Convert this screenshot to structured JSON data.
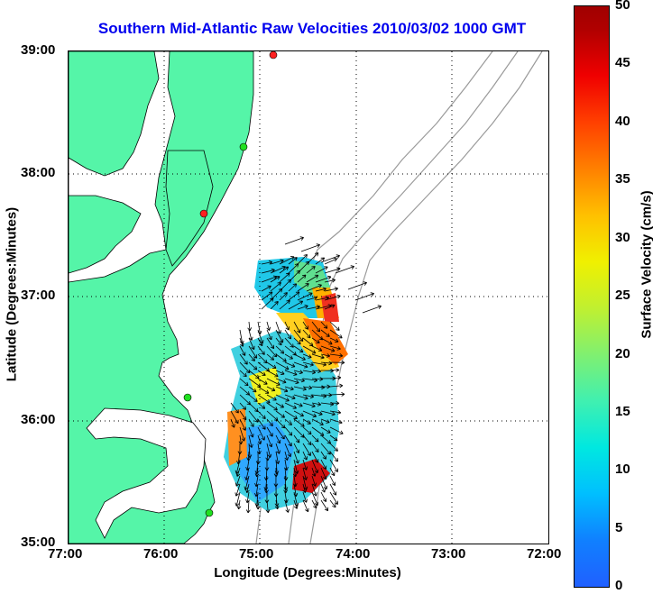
{
  "title": "Southern Mid-Atlantic Raw Velocities 2010/03/02 1000 GMT",
  "xlabel": "Longitude (Degrees:Minutes)",
  "ylabel": "Latitude (Degrees:Minutes)",
  "colorbar": {
    "label": "Surface Velocity (cm/s)",
    "ticks": [
      "50",
      "45",
      "40",
      "35",
      "30",
      "25",
      "20",
      "15",
      "10",
      "5",
      "0"
    ]
  },
  "x_ticks": [
    "77:00",
    "76:00",
    "75:00",
    "74:00",
    "73:00",
    "72:00"
  ],
  "y_ticks": [
    "39:00",
    "38:00",
    "37:00",
    "36:00",
    "35:00"
  ],
  "colors": {
    "land": "#55f5a8",
    "coast": "#000000",
    "bathymetry": "#9a9a9a",
    "title": "#0000ee",
    "grid": "#000000"
  },
  "stations": [
    {
      "name": "station-1",
      "color": "#ff2020"
    },
    {
      "name": "station-2",
      "color": "#20e020"
    },
    {
      "name": "station-3",
      "color": "#ff2020"
    },
    {
      "name": "station-4",
      "color": "#20e020"
    },
    {
      "name": "station-5",
      "color": "#20e020"
    }
  ]
}
